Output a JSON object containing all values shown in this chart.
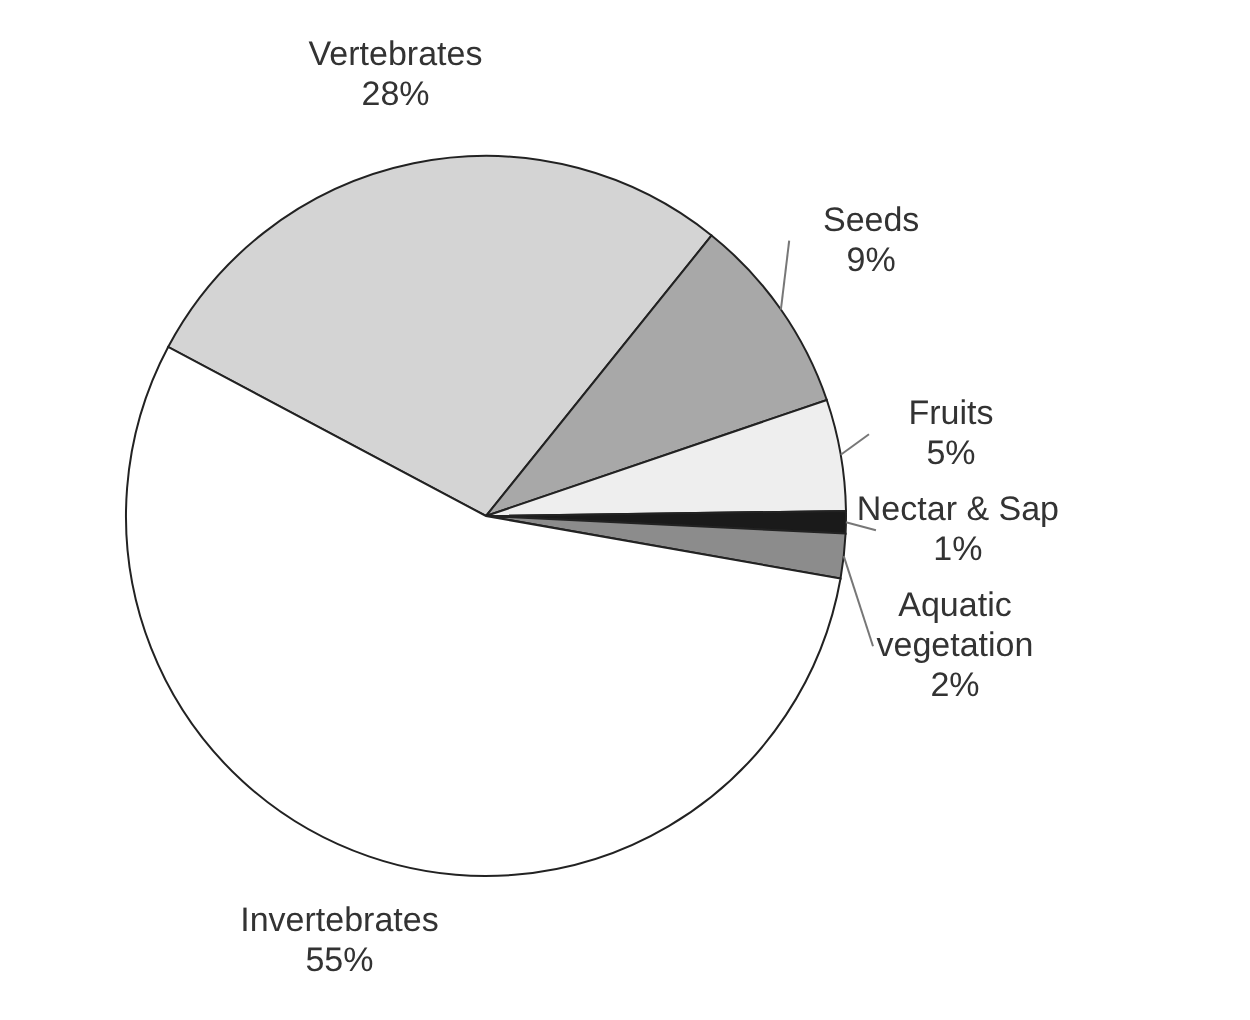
{
  "chart_data": {
    "type": "pie",
    "categories": [
      "Vertebrates",
      "Seeds",
      "Fruits",
      "Nectar & Sap",
      "Aquatic vegetation",
      "Invertebrates"
    ],
    "values": [
      28,
      9,
      5,
      1,
      2,
      55
    ],
    "value_labels": [
      "28%",
      "9%",
      "5%",
      "1%",
      "2%",
      "55%"
    ],
    "colors": [
      "#d4d4d4",
      "#a8a8a8",
      "#eeeeee",
      "#1a1a1a",
      "#8c8c8c",
      "#ffffff"
    ]
  }
}
